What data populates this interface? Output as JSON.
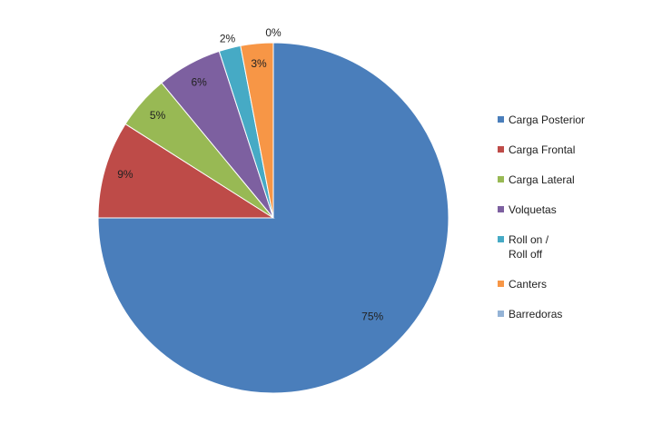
{
  "chart_data": {
    "type": "pie",
    "categories": [
      "Carga Posterior",
      "Carga Frontal",
      "Carga Lateral",
      "Volquetas",
      "Roll on /\nRoll off",
      "Canters",
      "Barredoras"
    ],
    "values": [
      75,
      9,
      5,
      6,
      2,
      3,
      0
    ],
    "value_labels": [
      "75%",
      "9%",
      "5%",
      "6%",
      "2%",
      "3%",
      "0%"
    ],
    "colors": [
      "#4a7ebb",
      "#be4b48",
      "#98b954",
      "#7d60a0",
      "#46aac5",
      "#f79646",
      "#94b3d6"
    ],
    "legend": "right"
  }
}
